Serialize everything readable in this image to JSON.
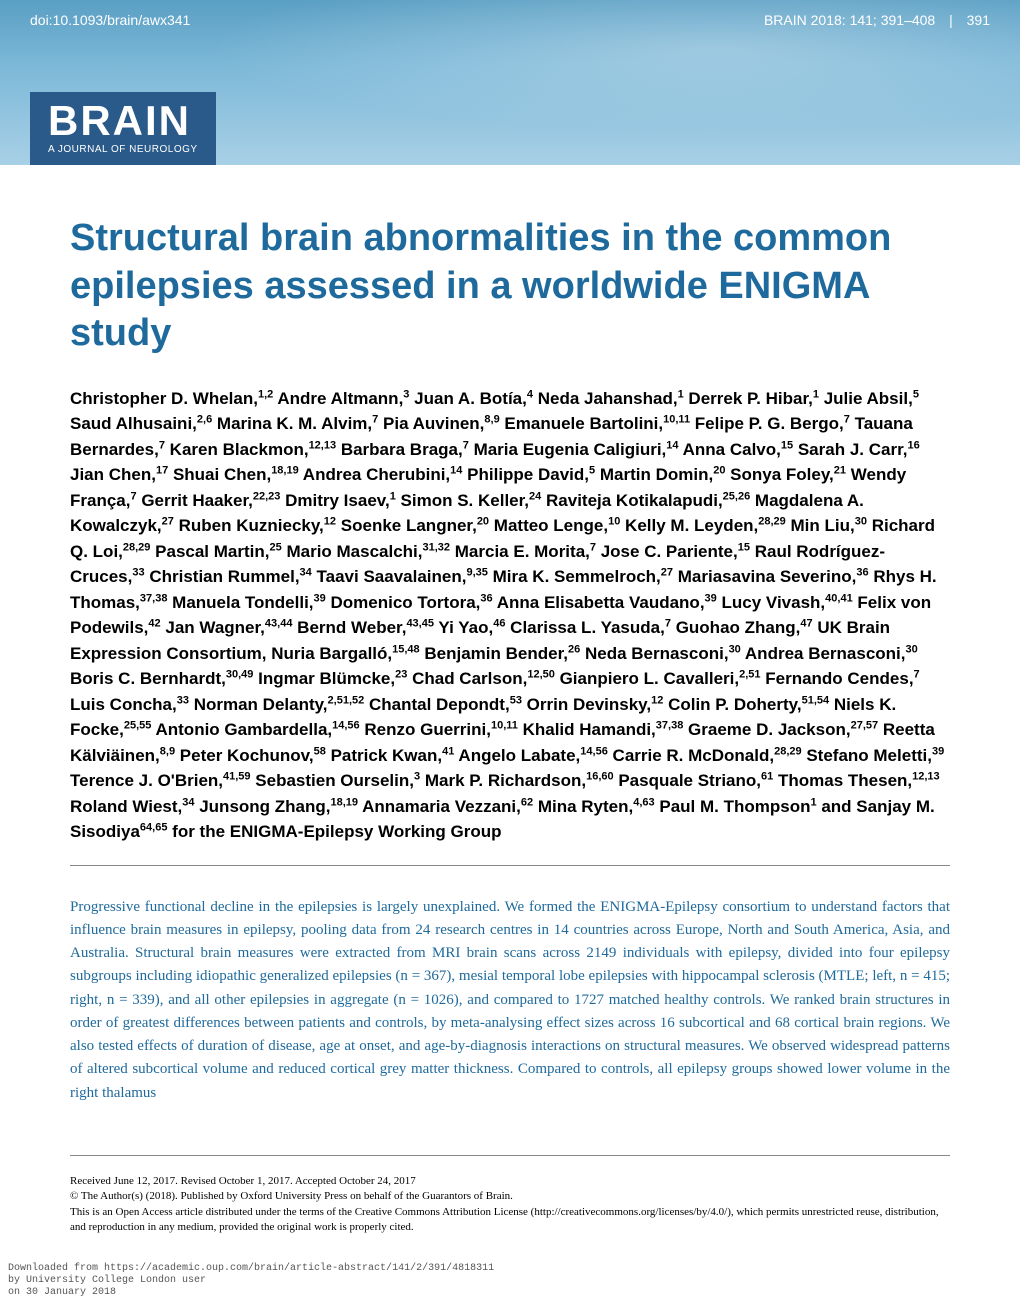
{
  "header": {
    "doi": "doi:10.1093/brain/awx341",
    "journal_ref": "BRAIN 2018: 141; 391–408",
    "page_number": "391",
    "logo_title": "BRAIN",
    "logo_subtitle": "A JOURNAL OF NEUROLOGY"
  },
  "article": {
    "title": "Structural brain abnormalities in the common epilepsies assessed in a worldwide ENIGMA study",
    "authors_html": "Christopher D. Whelan,<sup>1,2</sup> Andre Altmann,<sup>3</sup> Juan A. Botía,<sup>4</sup> Neda Jahanshad,<sup>1</sup> Derrek P. Hibar,<sup>1</sup> Julie Absil,<sup>5</sup> Saud Alhusaini,<sup>2,6</sup> Marina K. M. Alvim,<sup>7</sup> Pia Auvinen,<sup>8,9</sup> Emanuele Bartolini,<sup>10,11</sup> Felipe P. G. Bergo,<sup>7</sup> Tauana Bernardes,<sup>7</sup> Karen Blackmon,<sup>12,13</sup> Barbara Braga,<sup>7</sup> Maria Eugenia Caligiuri,<sup>14</sup> Anna Calvo,<sup>15</sup> Sarah J. Carr,<sup>16</sup> Jian Chen,<sup>17</sup> Shuai Chen,<sup>18,19</sup> Andrea Cherubini,<sup>14</sup> Philippe David,<sup>5</sup> Martin Domin,<sup>20</sup> Sonya Foley,<sup>21</sup> Wendy França,<sup>7</sup> Gerrit Haaker,<sup>22,23</sup> Dmitry Isaev,<sup>1</sup> Simon S. Keller,<sup>24</sup> Raviteja Kotikalapudi,<sup>25,26</sup> Magdalena A. Kowalczyk,<sup>27</sup> Ruben Kuzniecky,<sup>12</sup> Soenke Langner,<sup>20</sup> Matteo Lenge,<sup>10</sup> Kelly M. Leyden,<sup>28,29</sup> Min Liu,<sup>30</sup> Richard Q. Loi,<sup>28,29</sup> Pascal Martin,<sup>25</sup> Mario Mascalchi,<sup>31,32</sup> Marcia E. Morita,<sup>7</sup> Jose C. Pariente,<sup>15</sup> Raul Rodríguez-Cruces,<sup>33</sup> Christian Rummel,<sup>34</sup> Taavi Saavalainen,<sup>9,35</sup> Mira K. Semmelroch,<sup>27</sup> Mariasavina Severino,<sup>36</sup> Rhys H. Thomas,<sup>37,38</sup> Manuela Tondelli,<sup>39</sup> Domenico Tortora,<sup>36</sup> Anna Elisabetta Vaudano,<sup>39</sup> Lucy Vivash,<sup>40,41</sup> Felix von Podewils,<sup>42</sup> Jan Wagner,<sup>43,44</sup> Bernd Weber,<sup>43,45</sup> Yi Yao,<sup>46</sup> Clarissa L. Yasuda,<sup>7</sup> Guohao Zhang,<sup>47</sup> UK Brain Expression Consortium, Nuria Bargalló,<sup>15,48</sup> Benjamin Bender,<sup>26</sup> Neda Bernasconi,<sup>30</sup> Andrea Bernasconi,<sup>30</sup> Boris C. Bernhardt,<sup>30,49</sup> Ingmar Blümcke,<sup>23</sup> Chad Carlson,<sup>12,50</sup> Gianpiero L. Cavalleri,<sup>2,51</sup> Fernando Cendes,<sup>7</sup> Luis Concha,<sup>33</sup> Norman Delanty,<sup>2,51,52</sup> Chantal Depondt,<sup>53</sup> Orrin Devinsky,<sup>12</sup> Colin P. Doherty,<sup>51,54</sup> Niels K. Focke,<sup>25,55</sup> Antonio Gambardella,<sup>14,56</sup> Renzo Guerrini,<sup>10,11</sup> Khalid Hamandi,<sup>37,38</sup> Graeme D. Jackson,<sup>27,57</sup> Reetta Kälviäinen,<sup>8,9</sup> Peter Kochunov,<sup>58</sup> Patrick Kwan,<sup>41</sup> Angelo Labate,<sup>14,56</sup> Carrie R. McDonald,<sup>28,29</sup> Stefano Meletti,<sup>39</sup> Terence J. O'Brien,<sup>41,59</sup> Sebastien Ourselin,<sup>3</sup> Mark P. Richardson,<sup>16,60</sup> Pasquale Striano,<sup>61</sup> Thomas Thesen,<sup>12,13</sup> Roland Wiest,<sup>34</sup> Junsong Zhang,<sup>18,19</sup> Annamaria Vezzani,<sup>62</sup> Mina Ryten,<sup>4,63</sup> Paul M. Thompson<sup>1</sup> and Sanjay M. Sisodiya<sup>64,65</sup> for the ENIGMA-Epilepsy Working Group"
  },
  "abstract": {
    "text": "Progressive functional decline in the epilepsies is largely unexplained. We formed the ENIGMA-Epilepsy consortium to understand factors that influence brain measures in epilepsy, pooling data from 24 research centres in 14 countries across Europe, North and South America, Asia, and Australia. Structural brain measures were extracted from MRI brain scans across 2149 individuals with epilepsy, divided into four epilepsy subgroups including idiopathic generalized epilepsies (n = 367), mesial temporal lobe epilepsies with hippocampal sclerosis (MTLE; left, n = 415; right, n = 339), and all other epilepsies in aggregate (n = 1026), and compared to 1727 matched healthy controls. We ranked brain structures in order of greatest differences between patients and controls, by meta-analysing effect sizes across 16 subcortical and 68 cortical brain regions. We also tested effects of duration of disease, age at onset, and age-by-diagnosis interactions on structural measures. We observed widespread patterns of altered subcortical volume and reduced cortical grey matter thickness. Compared to controls, all epilepsy groups showed lower volume in the right thalamus"
  },
  "footer": {
    "received": "Received June 12, 2017. Revised October 1, 2017. Accepted October 24, 2017",
    "copyright": "© The Author(s) (2018). Published by Oxford University Press on behalf of the Guarantors of Brain.",
    "license": "This is an Open Access article distributed under the terms of the Creative Commons Attribution License (http://creativecommons.org/licenses/by/4.0/), which permits unrestricted reuse, distribution, and reproduction in any medium, provided the original work is properly cited."
  },
  "download": {
    "line1": "Downloaded from https://academic.oup.com/brain/article-abstract/141/2/391/4818311",
    "line2": "by University College London user",
    "line3": "on 30 January 2018"
  },
  "colors": {
    "title_color": "#1f6a9c",
    "header_gradient_top": "#5a9fc4",
    "header_gradient_bottom": "#a8d0e6",
    "logo_bg": "#2a5a8a"
  }
}
